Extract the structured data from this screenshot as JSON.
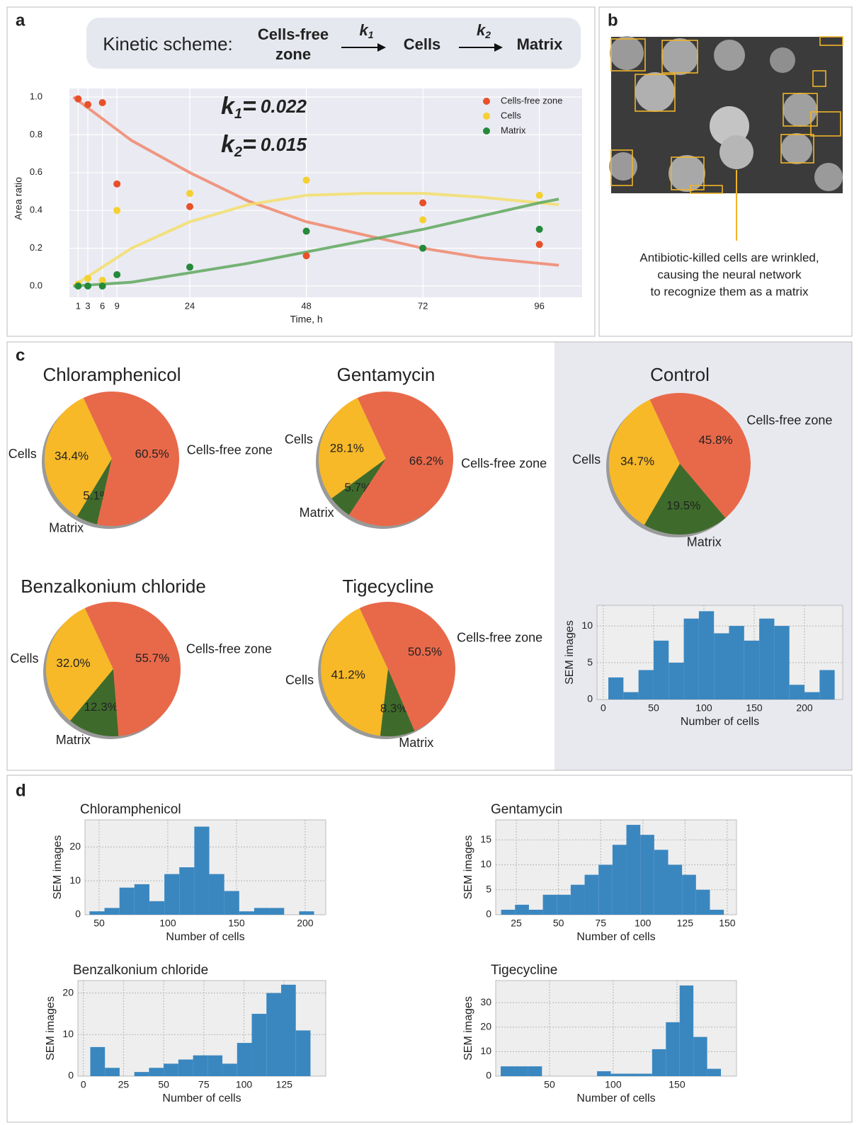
{
  "panel_labels": [
    "a",
    "b",
    "c",
    "d"
  ],
  "kinetic_scheme": {
    "title": "Kinetic scheme:",
    "nodes": [
      {
        "lines": [
          "Cells-free",
          "zone"
        ],
        "color": "#e8562f"
      },
      {
        "lines": [
          "Cells"
        ],
        "color": "#f2c21b"
      },
      {
        "lines": [
          "Matrix"
        ],
        "color": "#2b8a3e"
      }
    ],
    "rates": [
      {
        "symbol": "k",
        "index": "1"
      },
      {
        "symbol": "k",
        "index": "2"
      }
    ]
  },
  "panel_b": {
    "caption_lines": [
      "Antibiotic-killed cells are wrinkled,",
      "causing the neural network",
      "to recognize them as a matrix"
    ]
  },
  "chart_data": [
    {
      "type": "scatter",
      "xlabel": "Time, h",
      "ylabel": "Area ratio",
      "x": [
        1,
        3,
        6,
        9,
        24,
        48,
        72,
        96
      ],
      "series": [
        {
          "name": "Cells-free zone",
          "color": "#e8502a",
          "values": [
            0.99,
            0.96,
            0.97,
            0.54,
            0.42,
            0.16,
            0.44,
            0.22
          ]
        },
        {
          "name": "Cells",
          "color": "#f5d033",
          "values": [
            0.01,
            0.04,
            0.03,
            0.4,
            0.49,
            0.56,
            0.35,
            0.48
          ]
        },
        {
          "name": "Matrix",
          "color": "#248a3a",
          "values": [
            0.0,
            0.0,
            0.0,
            0.06,
            0.1,
            0.29,
            0.2,
            0.3
          ]
        }
      ],
      "fits": {
        "x": [
          0,
          12,
          24,
          36,
          48,
          60,
          72,
          84,
          96,
          100
        ],
        "series": [
          {
            "color": "#f0876c",
            "values": [
              1.0,
              0.77,
              0.6,
              0.45,
              0.34,
              0.27,
              0.2,
              0.15,
              0.12,
              0.11
            ]
          },
          {
            "color": "#f3de6a",
            "values": [
              0.0,
              0.2,
              0.34,
              0.43,
              0.48,
              0.49,
              0.49,
              0.47,
              0.44,
              0.43
            ]
          },
          {
            "color": "#5fa85e",
            "values": [
              0.0,
              0.02,
              0.07,
              0.12,
              0.18,
              0.24,
              0.3,
              0.37,
              0.44,
              0.46
            ]
          }
        ]
      },
      "annotations": [
        {
          "symbol": "k",
          "index": "1",
          "operator": "=",
          "value": 0.022
        },
        {
          "symbol": "k",
          "index": "2",
          "operator": "=",
          "value": 0.015
        }
      ],
      "xlim": [
        -0.8,
        104.8
      ],
      "ylim": [
        -0.06,
        1.045
      ],
      "xticks": [
        1,
        3,
        6,
        9,
        24,
        48,
        72,
        96
      ],
      "yticks": [
        {
          "value": 0,
          "label": "0.0"
        },
        0.2,
        0.4,
        0.6,
        0.8,
        {
          "value": 1,
          "label": "1.0"
        }
      ],
      "grid": true,
      "legend": "upper right"
    },
    {
      "type": "pie",
      "title": "Chloramphenicol",
      "categories": [
        "Cells",
        "Matrix",
        "Cells-free zone"
      ],
      "values": [
        34.4,
        5.1,
        60.5
      ],
      "value_labels": [
        "34.4%",
        "5.1%",
        "60.5%"
      ],
      "colors": [
        "#f7b928",
        "#3e6b2b",
        "#e8694a"
      ]
    },
    {
      "type": "pie",
      "title": "Gentamycin",
      "categories": [
        "Cells",
        "Matrix",
        "Cells-free zone"
      ],
      "values": [
        28.1,
        5.7,
        66.2
      ],
      "value_labels": [
        "28.1%",
        "5.7%",
        "66.2%"
      ],
      "colors": [
        "#f7b928",
        "#3e6b2b",
        "#e8694a"
      ]
    },
    {
      "type": "pie",
      "title": "Control",
      "categories": [
        "Cells",
        "Matrix",
        "Cells-free zone"
      ],
      "values": [
        34.7,
        19.5,
        45.8
      ],
      "value_labels": [
        "34.7%",
        "19.5%",
        "45.8%"
      ],
      "colors": [
        "#f7b928",
        "#3e6b2b",
        "#e8694a"
      ]
    },
    {
      "type": "pie",
      "title": "Benzalkonium chloride",
      "categories": [
        "Cells",
        "Matrix",
        "Cells-free zone"
      ],
      "values": [
        32.0,
        12.3,
        55.7
      ],
      "value_labels": [
        "32.0%",
        "12.3%",
        "55.7%"
      ],
      "colors": [
        "#f7b928",
        "#3e6b2b",
        "#e8694a"
      ]
    },
    {
      "type": "pie",
      "title": "Tigecycline",
      "categories": [
        "Cells",
        "Matrix",
        "Cells-free zone"
      ],
      "values": [
        41.2,
        8.3,
        50.5
      ],
      "value_labels": [
        "41.2%",
        "8.3%",
        "50.5%"
      ],
      "colors": [
        "#f7b928",
        "#3e6b2b",
        "#e8694a"
      ]
    },
    {
      "type": "histogram",
      "xlabel": "Number of cells",
      "ylabel": "SEM images",
      "color": "#3a87c0",
      "grid": true,
      "bins": [
        5,
        20,
        35,
        50,
        65,
        80,
        95,
        110,
        125,
        140,
        155,
        170,
        185,
        200,
        215,
        230
      ],
      "values": [
        3,
        1,
        4,
        8,
        5,
        11,
        12,
        9,
        10,
        8,
        11,
        10,
        2,
        1,
        4
      ],
      "xlim": [
        -6.3,
        238
      ],
      "ylim": [
        0,
        12.8
      ],
      "xticks": [
        0,
        50,
        100,
        150,
        200
      ],
      "yticks": [
        0,
        5,
        10
      ]
    },
    {
      "type": "histogram",
      "title": "Chloramphenicol",
      "xlabel": "Number of cells",
      "ylabel": "SEM images",
      "color": "#3a87c0",
      "grid": true,
      "bins": [
        43,
        53.9,
        64.8,
        75.7,
        86.6,
        97.5,
        108.4,
        119.3,
        130.2,
        141.1,
        152,
        162.9,
        173.8,
        184.7,
        195.6,
        206.5
      ],
      "values": [
        1,
        2,
        8,
        9,
        4,
        12,
        14,
        26,
        12,
        7,
        1,
        2,
        2,
        0,
        1
      ],
      "xlim": [
        39.7,
        215
      ],
      "ylim": [
        0,
        28
      ],
      "xticks": [
        50,
        100,
        150,
        200
      ],
      "yticks": [
        0,
        10,
        20
      ]
    },
    {
      "type": "histogram",
      "title": "Gentamycin",
      "xlabel": "Number of cells",
      "ylabel": "SEM images",
      "color": "#3a87c0",
      "grid": true,
      "bins": [
        16,
        24.25,
        32.5,
        40.75,
        49,
        57.25,
        65.5,
        73.75,
        82,
        90.25,
        98.5,
        106.75,
        115,
        123.25,
        131.5,
        139.75,
        148
      ],
      "values": [
        1,
        2,
        1,
        4,
        4,
        6,
        8,
        10,
        14,
        18,
        16,
        13,
        10,
        8,
        5,
        1
      ],
      "xlim": [
        12.8,
        155.5
      ],
      "ylim": [
        0,
        19
      ],
      "xticks": [
        25,
        50,
        75,
        100,
        125,
        150
      ],
      "yticks": [
        0,
        5,
        10,
        15
      ]
    },
    {
      "type": "histogram",
      "title": "Benzalkonium chloride",
      "xlabel": "Number of cells",
      "ylabel": "SEM images",
      "color": "#3a87c0",
      "grid": true,
      "bins": [
        4.3,
        13.44,
        22.58,
        31.72,
        40.86,
        50,
        59.14,
        68.28,
        77.42,
        86.56,
        95.7,
        104.84,
        113.98,
        123.12,
        132.26,
        141.4
      ],
      "values": [
        7,
        2,
        0,
        1,
        2,
        3,
        4,
        5,
        5,
        3,
        8,
        15,
        20,
        22,
        11
      ],
      "xlim": [
        -3.4,
        150.9
      ],
      "ylim": [
        0,
        23
      ],
      "xticks": [
        0,
        25,
        50,
        75,
        100,
        125
      ],
      "yticks": [
        0,
        10,
        20
      ]
    },
    {
      "type": "histogram",
      "title": "Tigecycline",
      "xlabel": "Number of cells",
      "ylabel": "SEM images",
      "color": "#3a87c0",
      "grid": true,
      "bins": [
        11.7,
        22.5,
        33.3,
        44.1,
        54.9,
        65.7,
        76.5,
        87.3,
        98.1,
        108.9,
        119.7,
        130.5,
        141.3,
        152.1,
        162.9,
        173.7,
        184.5
      ],
      "values": [
        4,
        4,
        4,
        0,
        0,
        0,
        0,
        2,
        1,
        1,
        1,
        11,
        22,
        37,
        16,
        3
      ],
      "xlim": [
        7.8,
        196.7
      ],
      "ylim": [
        0,
        39
      ],
      "xticks": [
        50,
        100,
        150
      ],
      "yticks": [
        0,
        10,
        20,
        30
      ]
    }
  ]
}
